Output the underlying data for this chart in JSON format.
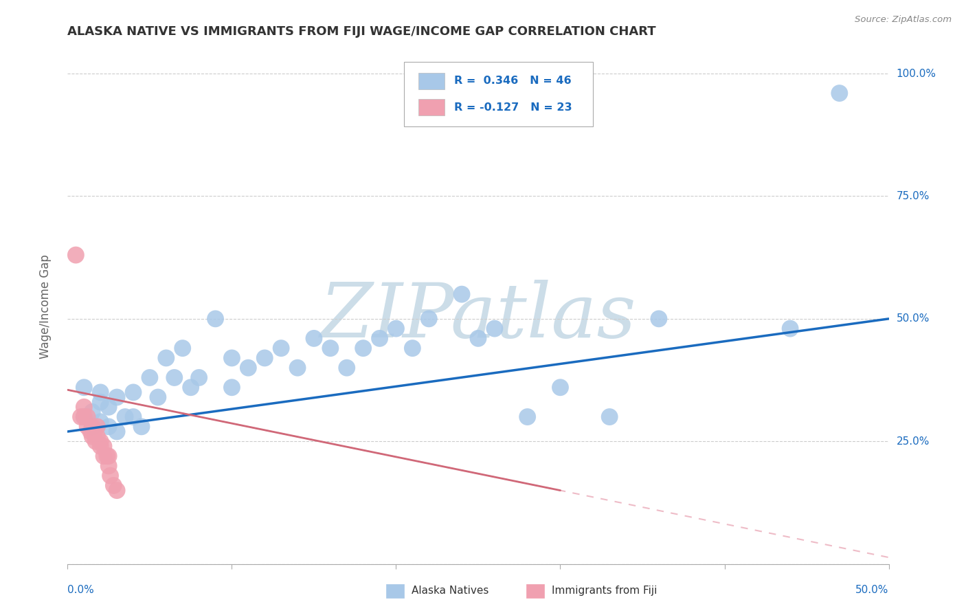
{
  "title": "ALASKA NATIVE VS IMMIGRANTS FROM FIJI WAGE/INCOME GAP CORRELATION CHART",
  "source": "Source: ZipAtlas.com",
  "ylabel": "Wage/Income Gap",
  "yticks": [
    0.0,
    0.25,
    0.5,
    0.75,
    1.0
  ],
  "ytick_labels": [
    "",
    "25.0%",
    "50.0%",
    "75.0%",
    "100.0%"
  ],
  "xlim": [
    0.0,
    0.5
  ],
  "ylim": [
    0.0,
    1.05
  ],
  "blue_color": "#a8c8e8",
  "blue_line_color": "#1a6bbf",
  "pink_color": "#f0a0b0",
  "pink_line_color": "#d06878",
  "pink_line_color_light": "#e8a0b0",
  "watermark_color": "#ccdde8",
  "background_color": "#ffffff",
  "blue_scatter_x": [
    0.01,
    0.01,
    0.015,
    0.015,
    0.02,
    0.02,
    0.02,
    0.025,
    0.025,
    0.03,
    0.03,
    0.035,
    0.04,
    0.04,
    0.045,
    0.05,
    0.055,
    0.06,
    0.065,
    0.07,
    0.075,
    0.08,
    0.09,
    0.1,
    0.1,
    0.11,
    0.12,
    0.13,
    0.14,
    0.15,
    0.16,
    0.17,
    0.18,
    0.19,
    0.2,
    0.21,
    0.22,
    0.24,
    0.25,
    0.26,
    0.28,
    0.3,
    0.33,
    0.36,
    0.44,
    0.47
  ],
  "blue_scatter_y": [
    0.3,
    0.36,
    0.31,
    0.28,
    0.33,
    0.29,
    0.35,
    0.28,
    0.32,
    0.27,
    0.34,
    0.3,
    0.3,
    0.35,
    0.28,
    0.38,
    0.34,
    0.42,
    0.38,
    0.44,
    0.36,
    0.38,
    0.5,
    0.36,
    0.42,
    0.4,
    0.42,
    0.44,
    0.4,
    0.46,
    0.44,
    0.4,
    0.44,
    0.46,
    0.48,
    0.44,
    0.5,
    0.55,
    0.46,
    0.48,
    0.3,
    0.36,
    0.3,
    0.5,
    0.48,
    0.96
  ],
  "pink_scatter_x": [
    0.005,
    0.008,
    0.01,
    0.01,
    0.012,
    0.012,
    0.014,
    0.015,
    0.015,
    0.016,
    0.017,
    0.018,
    0.018,
    0.02,
    0.02,
    0.022,
    0.022,
    0.024,
    0.025,
    0.025,
    0.026,
    0.028,
    0.03
  ],
  "pink_scatter_y": [
    0.63,
    0.3,
    0.3,
    0.32,
    0.28,
    0.3,
    0.27,
    0.28,
    0.26,
    0.27,
    0.25,
    0.26,
    0.28,
    0.24,
    0.25,
    0.22,
    0.24,
    0.22,
    0.2,
    0.22,
    0.18,
    0.16,
    0.15
  ],
  "blue_trend_x0": 0.0,
  "blue_trend_y0": 0.27,
  "blue_trend_x1": 0.5,
  "blue_trend_y1": 0.5,
  "pink_trend_x0": 0.0,
  "pink_trend_y0": 0.355,
  "pink_trend_x1": 0.3,
  "pink_trend_y1": 0.15
}
